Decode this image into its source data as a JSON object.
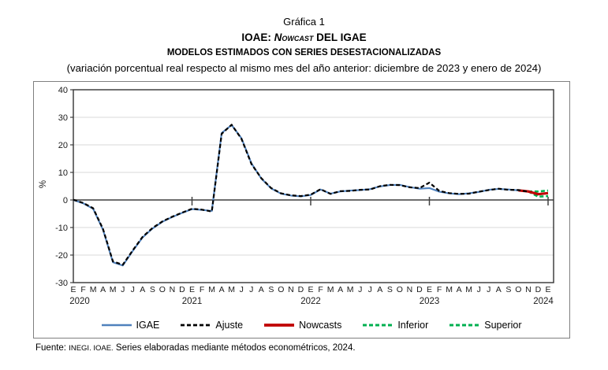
{
  "header": {
    "title": "Gráfica 1",
    "subtitle_prefix": "IOAE: ",
    "subtitle_italic": "Nowcast",
    "subtitle_suffix": " DEL IGAE",
    "subtitle2": "MODELOS ESTIMADOS CON SERIES DESESTACIONALIZADAS",
    "subtitle3": "(variación porcentual real respecto al mismo mes del año anterior: diciembre de 2023 y enero de 2024)"
  },
  "footer": {
    "fuente_label": "Fuente: ",
    "fuente_caps": "INEGI. IOAE.",
    "fuente_text": " Series elaboradas mediante métodos econométricos, 2024."
  },
  "chart_data": {
    "type": "line",
    "title": "Gráfica 1 — IOAE: Nowcast del IGAE",
    "subtitle": "Modelos estimados con series desestacionalizadas (variación porcentual real respecto al mismo mes del año anterior: diciembre de 2023 y enero de 2024)",
    "ylabel": "%",
    "ylim": [
      -30,
      40
    ],
    "yticks": [
      40,
      30,
      20,
      10,
      0,
      -10,
      -20,
      -30
    ],
    "grid": "horizontal",
    "legend_position": "bottom",
    "x_categories": [
      "E",
      "F",
      "M",
      "A",
      "M",
      "J",
      "J",
      "A",
      "S",
      "O",
      "N",
      "D",
      "E",
      "F",
      "M",
      "A",
      "M",
      "J",
      "J",
      "A",
      "S",
      "O",
      "N",
      "D",
      "E",
      "F",
      "M",
      "A",
      "M",
      "J",
      "J",
      "A",
      "S",
      "O",
      "N",
      "D",
      "E",
      "F",
      "M",
      "A",
      "M",
      "J",
      "J",
      "A",
      "S",
      "O",
      "N",
      "D",
      "E"
    ],
    "year_labels": [
      {
        "label": "2020",
        "index": 0,
        "dx": 8
      },
      {
        "label": "2021",
        "index": 12,
        "dx": 0
      },
      {
        "label": "2022",
        "index": 24,
        "dx": 0
      },
      {
        "label": "2023",
        "index": 36,
        "dx": 0
      },
      {
        "label": "2024",
        "index": 48,
        "dx": -6
      }
    ],
    "series": [
      {
        "name": "IGAE",
        "color": "#4F81BD",
        "style": "solid",
        "width": 2.1,
        "start_index": 0,
        "values": [
          0.0,
          -1.2,
          -3.2,
          -10.8,
          -22.6,
          -23.8,
          -18.5,
          -13.6,
          -10.4,
          -7.9,
          -6.2,
          -4.7,
          -3.3,
          -3.6,
          -4.0,
          24.3,
          27.2,
          22.4,
          13.3,
          7.8,
          4.2,
          2.3,
          1.6,
          1.3,
          1.8,
          3.8,
          2.3,
          3.1,
          3.4,
          3.6,
          3.9,
          4.9,
          5.4,
          5.5,
          4.7,
          4.1,
          4.3,
          3.0,
          2.4,
          2.1,
          2.4,
          2.9,
          3.7,
          4.0,
          3.8,
          3.5,
          3.1
        ]
      },
      {
        "name": "Inferior",
        "color": "#00B050",
        "style": "dashed",
        "width": 2.6,
        "start_index": 46,
        "values": [
          3.1,
          1.2,
          1.4
        ]
      },
      {
        "name": "Superior",
        "color": "#00B050",
        "style": "dashed",
        "width": 2.6,
        "start_index": 46,
        "values": [
          3.1,
          3.1,
          3.4
        ]
      },
      {
        "name": "Nowcasts",
        "color": "#C00000",
        "style": "solid",
        "width": 3.2,
        "start_index": 45,
        "values": [
          3.5,
          3.1,
          2.1,
          2.5
        ]
      },
      {
        "name": "Ajuste",
        "color": "#000000",
        "style": "dashed",
        "width": 2.2,
        "start_index": 0,
        "values": [
          0.1,
          -1.1,
          -3.0,
          -10.5,
          -22.3,
          -23.5,
          -18.3,
          -13.4,
          -10.2,
          -7.8,
          -6.1,
          -4.6,
          -3.2,
          -3.5,
          -4.2,
          24.0,
          27.3,
          22.2,
          13.1,
          7.9,
          4.3,
          2.4,
          1.7,
          1.4,
          1.9,
          3.9,
          2.2,
          3.2,
          3.3,
          3.7,
          3.8,
          5.0,
          5.5,
          5.4,
          4.6,
          4.3,
          6.3,
          3.3,
          2.5,
          2.2,
          2.3,
          3.0,
          3.6,
          4.1,
          3.7,
          3.6,
          3.0
        ]
      }
    ],
    "legend_order": [
      "IGAE",
      "Ajuste",
      "Nowcasts",
      "Inferior",
      "Superior"
    ]
  }
}
